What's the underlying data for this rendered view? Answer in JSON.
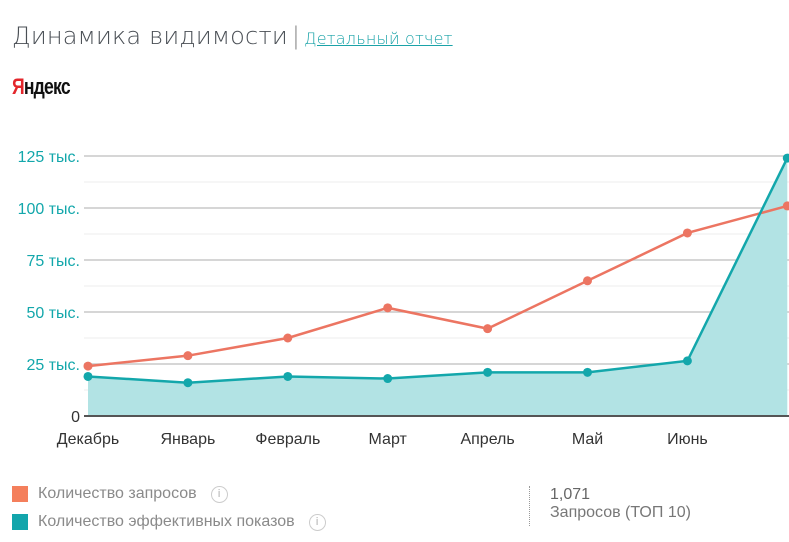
{
  "header": {
    "title": "Динамика видимости",
    "separator": "|",
    "link": "Детальный отчет",
    "logo": "Яндекс"
  },
  "chart_data": {
    "type": "line",
    "categories": [
      "Декабрь",
      "Январь",
      "Февраль",
      "Март",
      "Апрель",
      "Май",
      "Июнь",
      ""
    ],
    "ytick_labels": [
      "0",
      "25 тыс.",
      "50 тыс.",
      "75 тыс.",
      "100 тыс.",
      "125 тыс."
    ],
    "yticks": [
      0,
      25000,
      50000,
      75000,
      100000,
      125000
    ],
    "ylim": [
      0,
      125000
    ],
    "grid": true,
    "series": [
      {
        "name": "Количество запросов",
        "color": "#ec7562",
        "values": [
          24000,
          29000,
          37500,
          52000,
          42000,
          65000,
          88000,
          101000
        ]
      },
      {
        "name": "Количество эффективных показов",
        "color": "#13a7ab",
        "fill": "#b2e3e4",
        "area": true,
        "values": [
          19000,
          16000,
          19000,
          18000,
          21000,
          21000,
          26500,
          124000
        ]
      }
    ],
    "legend": "bottom-left"
  },
  "legend": {
    "items": [
      {
        "label": "Количество запросов",
        "color": "#f47f5c"
      },
      {
        "label": "Количество эффективных показов",
        "color": "#12a5ab"
      }
    ],
    "info_icon": "i"
  },
  "stat": {
    "value": "1,071",
    "label": "Запросов (ТОП 10)"
  }
}
